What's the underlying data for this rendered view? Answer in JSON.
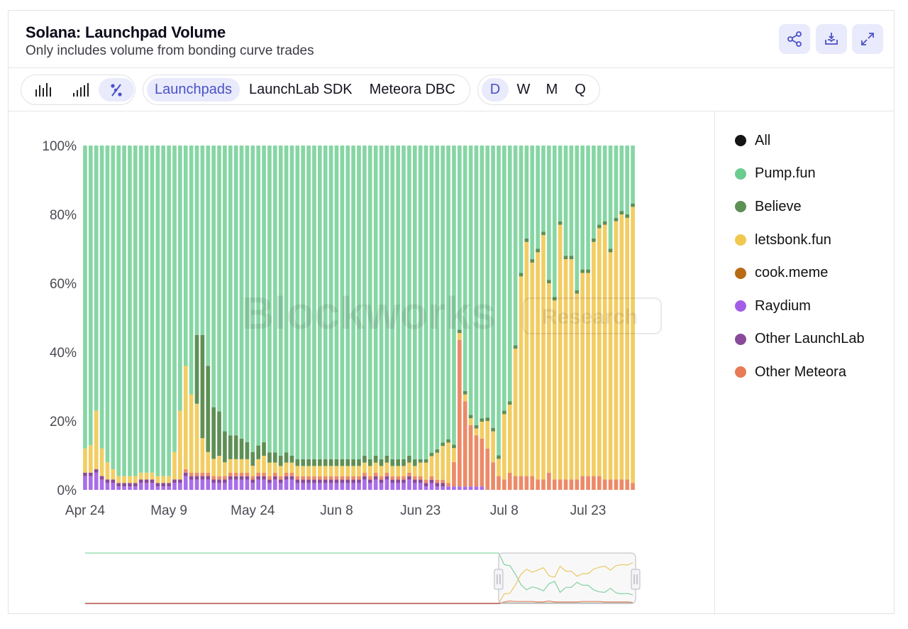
{
  "header": {
    "title": "Solana: Launchpad Volume",
    "subtitle": "Only includes volume from bonding curve trades"
  },
  "toolbar": {
    "chart_types": [
      {
        "icon": "bar-chart-icon",
        "active": false
      },
      {
        "icon": "stacked-bar-chart-icon",
        "active": false
      },
      {
        "icon": "percent-icon",
        "active": true
      }
    ],
    "views": [
      {
        "label": "Launchpads",
        "active": true
      },
      {
        "label": "LaunchLab SDK",
        "active": false
      },
      {
        "label": "Meteora DBC",
        "active": false
      }
    ],
    "intervals": [
      {
        "label": "D",
        "active": true
      },
      {
        "label": "W",
        "active": false
      },
      {
        "label": "M",
        "active": false
      },
      {
        "label": "Q",
        "active": false
      }
    ]
  },
  "header_buttons": [
    {
      "icon": "share-icon"
    },
    {
      "icon": "download-icon"
    },
    {
      "icon": "expand-icon"
    }
  ],
  "watermark": {
    "main": "Blockworks",
    "badge": "Research"
  },
  "colors": {
    "pump": "#86d6a4",
    "believe": "#5e8f55",
    "letsbonk": "#f2cd62",
    "cook": "#b86a14",
    "raydium": "#a86ee8",
    "other_launchlab": "#8a4a9a",
    "other_meteora": "#ec8a68",
    "all": "#151515"
  },
  "legend": [
    {
      "label": "All",
      "color": "#151515"
    },
    {
      "label": "Pump.fun",
      "color": "#6ccb8f"
    },
    {
      "label": "Believe",
      "color": "#5e8f55"
    },
    {
      "label": "letsbonk.fun",
      "color": "#f0c84e"
    },
    {
      "label": "cook.meme",
      "color": "#b86a14"
    },
    {
      "label": "Raydium",
      "color": "#a35ee8"
    },
    {
      "label": "Other LaunchLab",
      "color": "#8a4a9a"
    },
    {
      "label": "Other Meteora",
      "color": "#e87a55"
    }
  ],
  "chart_data": {
    "type": "bar",
    "stacked": true,
    "normalized": true,
    "x_start": "Apr 24",
    "x_ticks": [
      "Apr 24",
      "May 9",
      "May 24",
      "Jun 8",
      "Jun 23",
      "Jul 8",
      "Jul 23"
    ],
    "y_ticks": [
      "0%",
      "20%",
      "40%",
      "60%",
      "80%",
      "100%"
    ],
    "ylim": [
      0,
      100
    ],
    "grid": false,
    "legend_position": "right",
    "series_order": [
      "raydium",
      "other_launchlab",
      "cook",
      "other_meteora",
      "letsbonk",
      "believe",
      "pump"
    ],
    "series": [
      {
        "name": "Raydium",
        "key": "raydium",
        "values": [
          4,
          4,
          5,
          3,
          2,
          2,
          1,
          1,
          1,
          1,
          2,
          2,
          2,
          1,
          1,
          1,
          2,
          2,
          4,
          3,
          3,
          3,
          3,
          2,
          2,
          2,
          3,
          3,
          3,
          3,
          2,
          3,
          3,
          2,
          3,
          2,
          3,
          3,
          2,
          2,
          2,
          2,
          2,
          2,
          2,
          2,
          2,
          2,
          2,
          2,
          3,
          2,
          3,
          2,
          3,
          2,
          2,
          2,
          3,
          2,
          2,
          1,
          2,
          1,
          1,
          1,
          1,
          1,
          1,
          1,
          1,
          1,
          0,
          0,
          0,
          0,
          0,
          0,
          0,
          0,
          0,
          0,
          0,
          0,
          0,
          0,
          0,
          0,
          0,
          0,
          0,
          0,
          0,
          0,
          0,
          0,
          0,
          0,
          0
        ]
      },
      {
        "name": "Other LaunchLab",
        "key": "other_launchlab",
        "values": [
          1,
          1,
          1,
          1,
          1,
          1,
          1,
          1,
          1,
          1,
          1,
          1,
          1,
          1,
          1,
          1,
          1,
          1,
          1,
          1,
          1,
          1,
          1,
          1,
          1,
          1,
          1,
          1,
          1,
          1,
          1,
          1,
          1,
          1,
          1,
          1,
          1,
          1,
          1,
          1,
          1,
          1,
          1,
          1,
          1,
          1,
          1,
          1,
          1,
          1,
          1,
          1,
          1,
          1,
          1,
          1,
          1,
          1,
          1,
          1,
          1,
          1,
          1,
          1,
          1,
          0,
          0,
          0,
          0,
          0,
          0,
          0,
          0,
          0,
          0,
          0,
          0,
          0,
          0,
          0,
          0,
          0,
          0,
          0,
          0,
          0,
          0,
          0,
          0,
          0,
          0,
          0,
          0,
          0,
          0,
          0,
          0,
          0,
          0
        ]
      },
      {
        "name": "cook.meme",
        "key": "cook",
        "values": [
          0,
          0,
          0,
          0,
          0,
          0,
          0,
          0,
          0,
          0,
          0,
          0,
          0,
          0,
          0,
          0,
          0,
          0,
          0,
          0,
          0,
          0,
          0,
          0,
          0,
          0,
          0,
          0,
          0,
          0,
          0,
          0,
          0,
          0,
          0,
          0,
          0,
          0,
          0,
          0,
          0,
          0,
          0,
          0,
          0,
          0,
          0,
          0,
          0,
          0,
          0,
          0,
          0,
          0,
          0,
          0,
          0,
          0,
          0,
          0,
          0,
          0,
          0,
          0,
          0,
          0,
          0,
          0,
          0,
          0,
          0,
          0,
          0,
          0,
          0,
          0,
          0,
          0,
          0,
          0,
          0,
          0,
          0,
          0,
          0,
          0,
          0,
          0,
          0,
          0,
          0,
          0,
          0,
          0,
          0,
          0,
          0,
          0,
          0
        ]
      },
      {
        "name": "Other Meteora",
        "key": "other_meteora",
        "values": [
          0,
          0,
          0,
          0,
          0,
          0,
          0,
          0,
          0,
          0,
          0,
          0,
          0,
          0,
          0,
          0,
          0,
          0,
          1,
          1,
          1,
          1,
          1,
          1,
          1,
          1,
          1,
          1,
          1,
          1,
          1,
          1,
          1,
          1,
          1,
          1,
          1,
          1,
          1,
          1,
          1,
          1,
          1,
          1,
          1,
          1,
          1,
          1,
          1,
          1,
          1,
          1,
          1,
          1,
          1,
          1,
          1,
          1,
          1,
          1,
          1,
          1,
          1,
          1,
          1,
          1,
          7,
          43,
          25,
          18,
          15,
          14,
          12,
          8,
          4,
          3,
          5,
          4,
          4,
          4,
          4,
          3,
          3,
          5,
          3,
          3,
          3,
          3,
          3,
          4,
          4,
          4,
          4,
          3,
          3,
          3,
          3,
          3,
          2
        ]
      },
      {
        "name": "letsbonk.fun",
        "key": "letsbonk",
        "values": [
          7,
          8,
          17,
          8,
          5,
          3,
          2,
          2,
          2,
          2,
          2,
          2,
          2,
          2,
          2,
          2,
          8,
          20,
          30,
          23,
          20,
          10,
          6,
          5,
          6,
          4,
          4,
          4,
          4,
          4,
          3,
          4,
          5,
          4,
          3,
          3,
          3,
          3,
          3,
          3,
          3,
          3,
          3,
          3,
          3,
          3,
          3,
          3,
          3,
          3,
          3,
          3,
          3,
          3,
          3,
          3,
          3,
          3,
          3,
          3,
          4,
          5,
          6,
          8,
          10,
          12,
          4,
          2,
          2,
          2,
          2,
          5,
          8,
          9,
          5,
          19,
          20,
          37,
          58,
          68,
          62,
          66,
          71,
          55,
          52,
          74,
          64,
          64,
          54,
          59,
          59,
          68,
          72,
          74,
          66,
          75,
          77,
          76,
          81
        ]
      },
      {
        "name": "Believe",
        "key": "believe",
        "values": [
          0,
          0,
          0,
          0,
          0,
          0,
          0,
          0,
          0,
          0,
          0,
          0,
          0,
          0,
          0,
          0,
          0,
          0,
          0,
          0,
          20,
          30,
          25,
          15,
          13,
          9,
          7,
          7,
          6,
          5,
          4,
          4,
          4,
          3,
          3,
          3,
          3,
          2,
          2,
          2,
          2,
          2,
          2,
          2,
          2,
          2,
          2,
          2,
          2,
          2,
          2,
          2,
          2,
          2,
          2,
          2,
          2,
          2,
          2,
          2,
          1,
          1,
          1,
          1,
          1,
          1,
          1,
          1,
          1,
          1,
          1,
          1,
          1,
          1,
          1,
          1,
          1,
          1,
          1,
          1,
          1,
          1,
          1,
          1,
          1,
          1,
          1,
          1,
          1,
          1,
          1,
          1,
          1,
          1,
          1,
          1,
          1,
          1,
          1
        ]
      },
      {
        "name": "Pump.fun",
        "key": "pump",
        "values": [
          88,
          87,
          77,
          88,
          92,
          94,
          96,
          96,
          96,
          96,
          95,
          95,
          95,
          96,
          96,
          96,
          89,
          77,
          64,
          73,
          55,
          55,
          64,
          76,
          78,
          83,
          85,
          85,
          86,
          87,
          89,
          88,
          87,
          90,
          90,
          91,
          90,
          91,
          92,
          92,
          92,
          92,
          92,
          92,
          92,
          92,
          92,
          92,
          92,
          92,
          91,
          92,
          91,
          92,
          91,
          92,
          92,
          92,
          91,
          92,
          92,
          92,
          91,
          90,
          88,
          87,
          86,
          54,
          72,
          79,
          82,
          80,
          79,
          82,
          90,
          77,
          75,
          58,
          37,
          27,
          33,
          30,
          25,
          39,
          44,
          22,
          32,
          32,
          42,
          36,
          36,
          27,
          23,
          22,
          30,
          21,
          19,
          20,
          17
        ]
      }
    ]
  },
  "navigator": {
    "start": "Apr 24",
    "end": "Jul 23",
    "selection_start": "Jul 8",
    "selection_end": "Jul 23"
  }
}
